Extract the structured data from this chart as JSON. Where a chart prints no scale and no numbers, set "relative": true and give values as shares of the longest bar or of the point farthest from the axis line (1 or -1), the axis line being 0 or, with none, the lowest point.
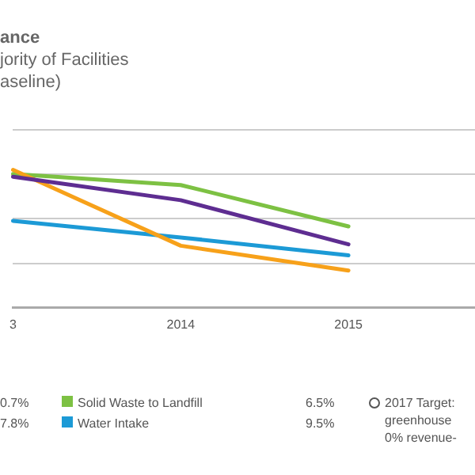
{
  "chart_data": {
    "type": "line",
    "title": "ance",
    "subtitle": "jority of Facilities\naseline)",
    "categories": [
      "3",
      "2014",
      "2015",
      null
    ],
    "relative": true,
    "grid": "y",
    "legend": "bottom",
    "marker": "none",
    "line_style": "solid",
    "series": [
      {
        "color": "#5e2d91",
        "values": [
          0.95,
          0.78,
          0.46,
          null
        ]
      },
      {
        "color": "#f7a11a",
        "values": [
          1,
          0.45,
          0.27,
          null
        ]
      },
      {
        "name": "Solid Waste to Landfill",
        "color": "#7dc143",
        "values": [
          0.97,
          0.89,
          0.59,
          null
        ]
      },
      {
        "name": "Water Intake",
        "color": "#1c9ad6",
        "values": [
          0.63,
          0.51,
          0.38,
          null
        ]
      }
    ],
    "annotations": [
      "0.7%",
      "7.8%",
      "6.5%",
      "9.5%",
      "2017 Target:\ngreenhouse\n0% revenue-"
    ]
  }
}
